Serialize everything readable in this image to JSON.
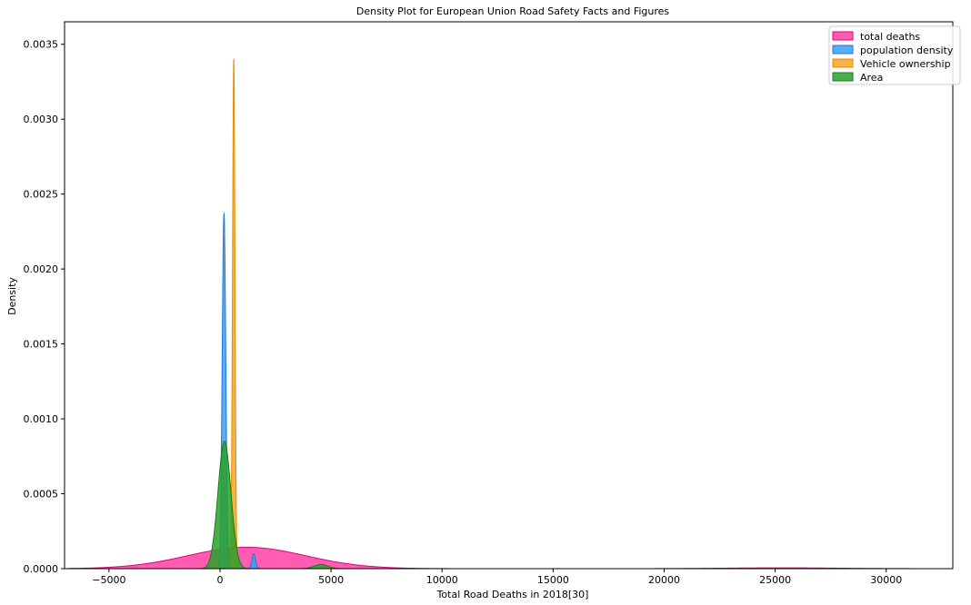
{
  "chart_data": {
    "type": "area",
    "title": "Density Plot for European Union Road Safety Facts and Figures",
    "xlabel": "Total Road Deaths in 2018[30]",
    "ylabel": "Density",
    "xlim": [
      -7000,
      33000
    ],
    "ylim": [
      0,
      0.00365
    ],
    "xticks": [
      -5000,
      0,
      5000,
      10000,
      15000,
      20000,
      25000,
      30000
    ],
    "xtick_labels": [
      "−5000",
      "0",
      "5000",
      "10000",
      "15000",
      "20000",
      "25000",
      "30000"
    ],
    "yticks": [
      0,
      0.0005,
      0.001,
      0.0015,
      0.002,
      0.0025,
      0.003,
      0.0035
    ],
    "ytick_labels": [
      "0.0000",
      "0.0005",
      "0.0010",
      "0.0015",
      "0.0020",
      "0.0025",
      "0.0030",
      "0.0035"
    ],
    "grid": false,
    "legend_position": "top-right",
    "series": [
      {
        "name": "total deaths",
        "fill": "#ff3fa4",
        "stroke": "#e0007a",
        "x_range": [
          -6800,
          32200
        ],
        "components": [
          {
            "mu": 1200,
            "sigma": 2650,
            "amp": 0.000143
          },
          {
            "mu": 25300,
            "sigma": 2500,
            "amp": 5.5e-06
          }
        ]
      },
      {
        "name": "population density",
        "fill": "#3d9ff5",
        "stroke": "#1f77d4",
        "x_range": [
          -300,
          1900
        ],
        "components": [
          {
            "mu": 180,
            "sigma": 80,
            "amp": 0.00237
          },
          {
            "mu": 1520,
            "sigma": 80,
            "amp": 0.0001
          }
        ]
      },
      {
        "name": "Vehicle ownership",
        "fill": "#f5a623",
        "stroke": "#e38e00",
        "x_range": [
          350,
          850
        ],
        "components": [
          {
            "mu": 620,
            "sigma": 55,
            "amp": 0.0034
          }
        ]
      },
      {
        "name": "Area",
        "fill": "#2ca02c",
        "stroke": "#1a7a1a",
        "x_range": [
          -900,
          5400
        ],
        "components": [
          {
            "mu": 200,
            "sigma": 290,
            "amp": 0.00085
          },
          {
            "mu": 4550,
            "sigma": 320,
            "amp": 2.8e-05
          }
        ]
      }
    ]
  }
}
